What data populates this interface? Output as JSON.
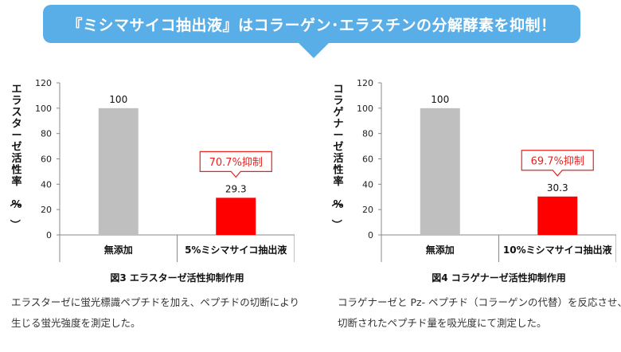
{
  "banner": {
    "title": "『ミシマサイコ抽出液』はコラーゲン･エラスチンの分解酵素を抑制！"
  },
  "charts": [
    {
      "ylabel": "エラスターゼ活性率（%）",
      "caption": "図3 エラスターゼ活性抑制作用",
      "callout": "70.7%抑制",
      "description": "エラスターゼに蛍光標識ペプチドを加え、ペプチドの切断により生じる蛍光強度を測定した。"
    },
    {
      "ylabel": "コラゲナーゼ活性率（%）",
      "caption": "図4 コラゲナーゼ活性抑制作用",
      "callout": "69.7%抑制",
      "description": "コラゲナーゼと Pz- ペプチド（コラーゲンの代替）を反応させ、切断されたペプチド量を吸光度にて測定した。"
    }
  ],
  "chart_data": [
    {
      "type": "bar",
      "title": "図3 エラスターゼ活性抑制作用",
      "ylabel": "エラスターゼ活性率（%）",
      "categories": [
        "無添加",
        "5%ミシマサイコ抽出液"
      ],
      "values": [
        100,
        29.3
      ],
      "value_labels": [
        "100",
        "29.3"
      ],
      "colors": [
        "#bfbfbf",
        "#ff0000"
      ],
      "ylim": [
        0,
        120
      ],
      "yticks": [
        0,
        20,
        40,
        60,
        80,
        100,
        120
      ],
      "grid": false,
      "annotation": "70.7%抑制"
    },
    {
      "type": "bar",
      "title": "図4 コラゲナーゼ活性抑制作用",
      "ylabel": "コラゲナーゼ活性率（%）",
      "categories": [
        "無添加",
        "10%ミシマサイコ抽出液"
      ],
      "values": [
        100,
        30.3
      ],
      "value_labels": [
        "100",
        "30.3"
      ],
      "colors": [
        "#bfbfbf",
        "#ff0000"
      ],
      "ylim": [
        0,
        120
      ],
      "yticks": [
        0,
        20,
        40,
        60,
        80,
        100,
        120
      ],
      "grid": false,
      "annotation": "69.7%抑制"
    }
  ]
}
